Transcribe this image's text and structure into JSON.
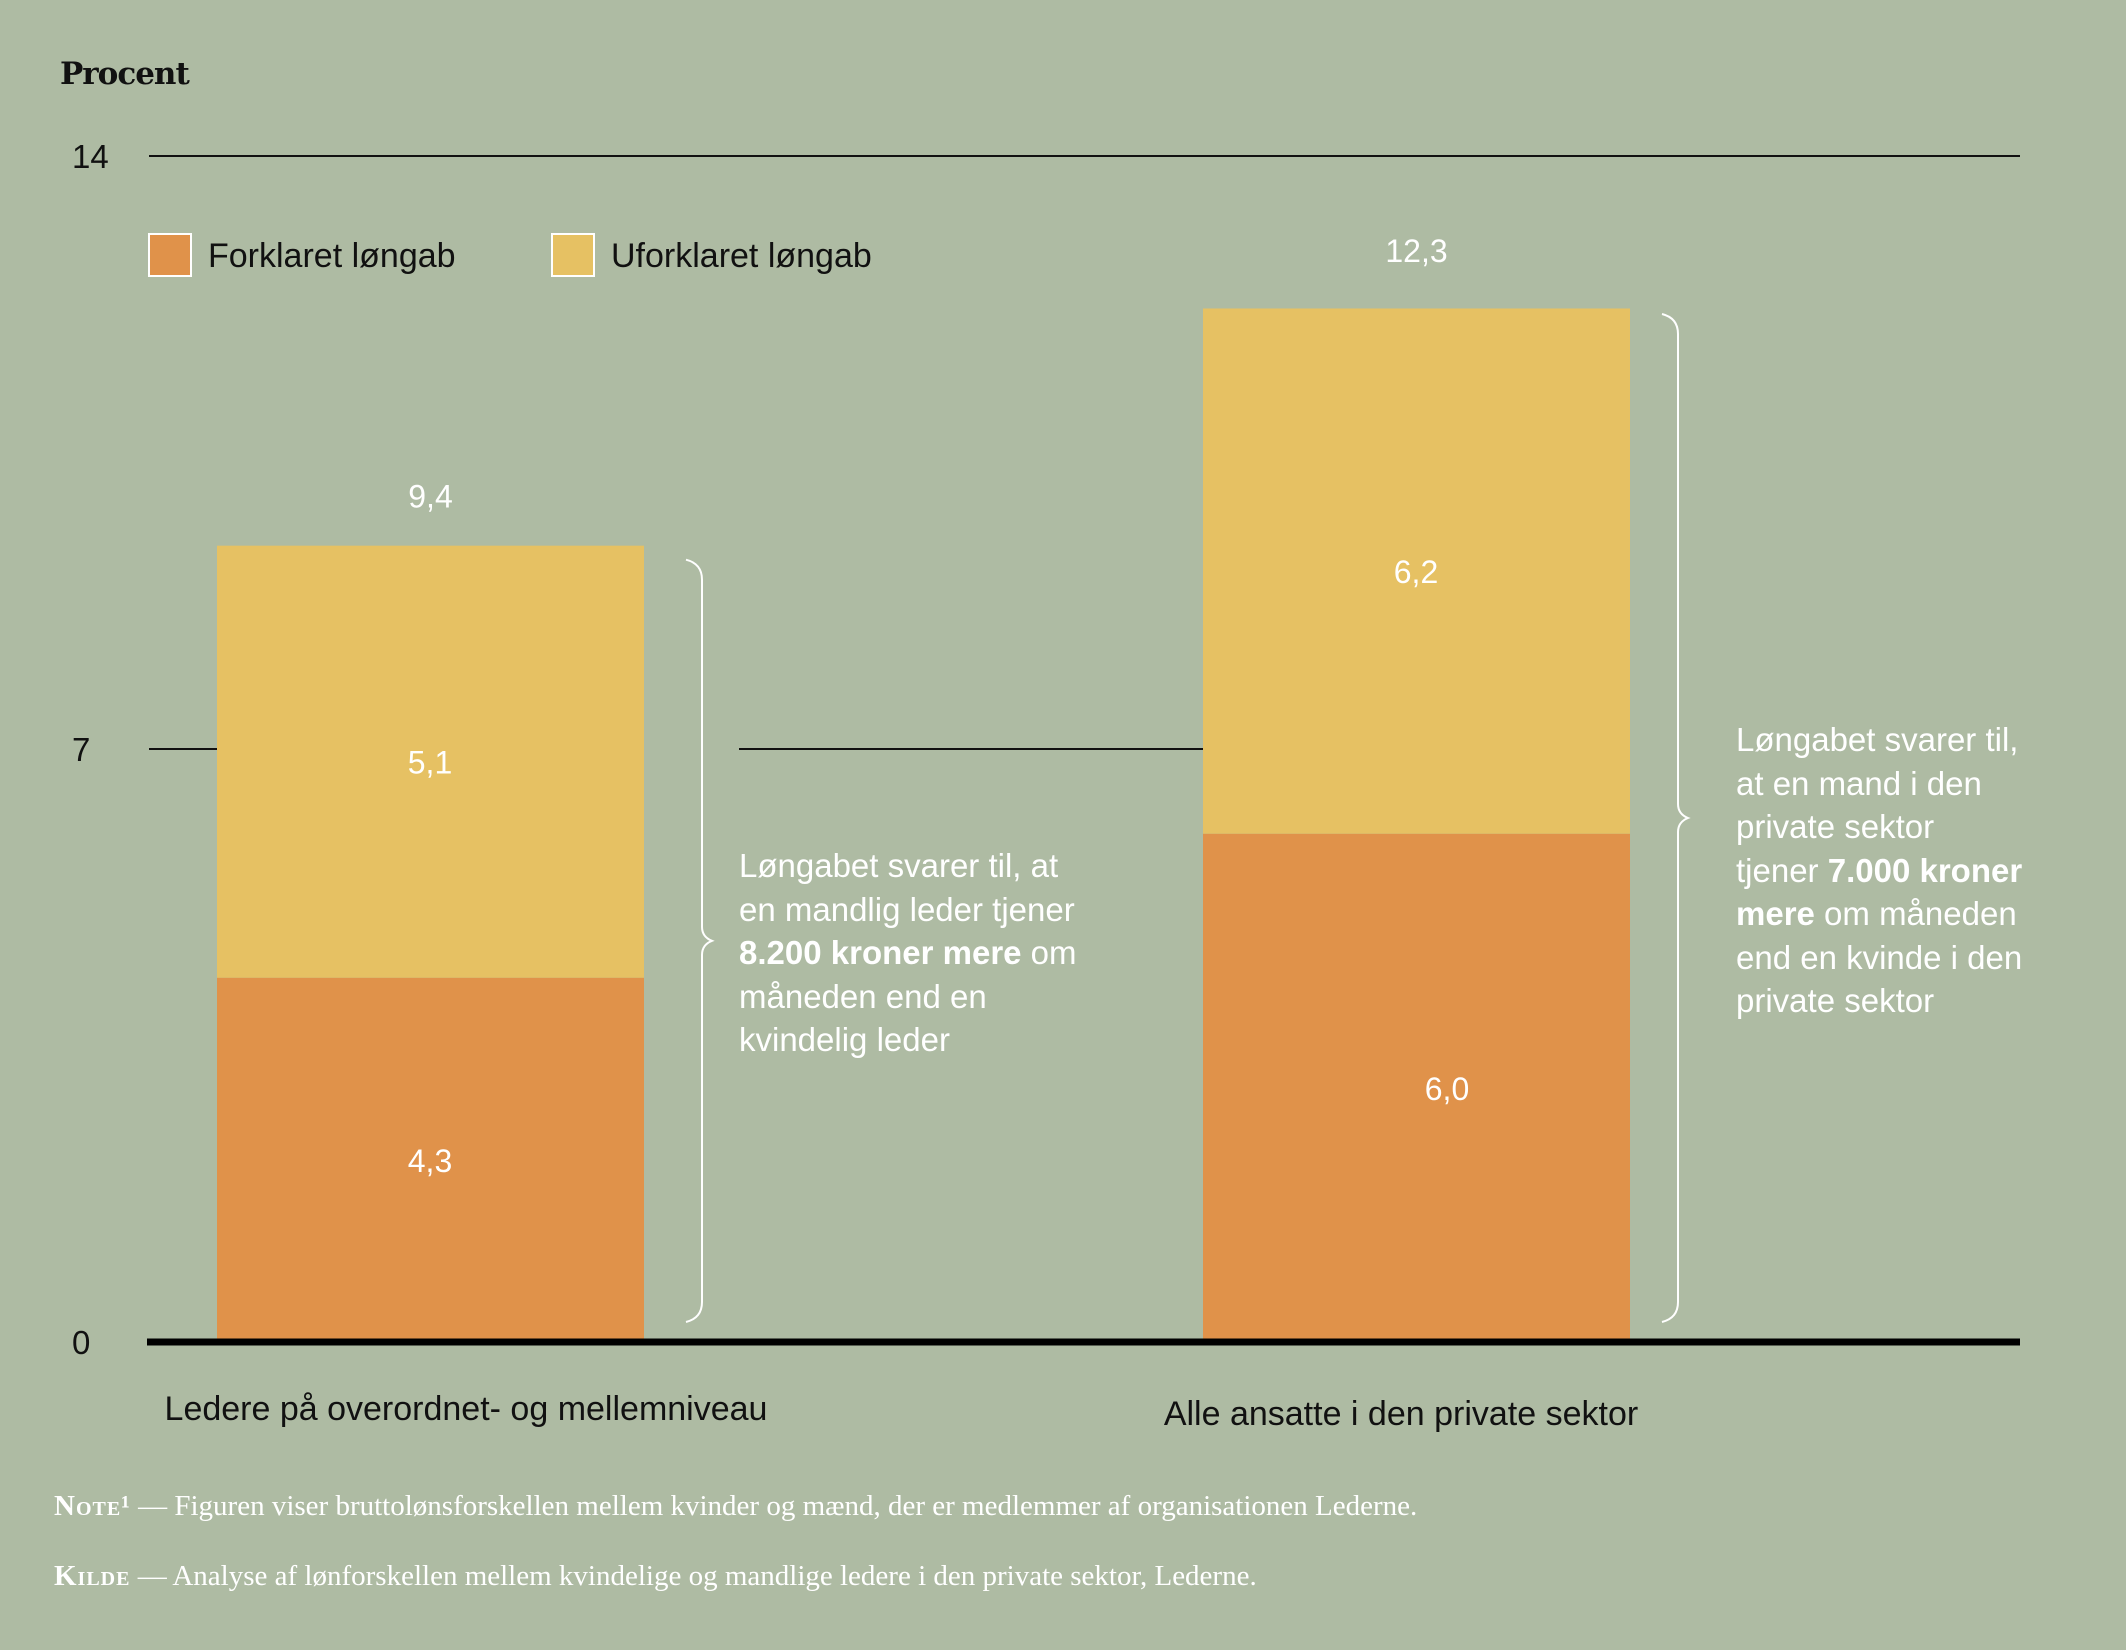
{
  "colors": {
    "background": "#aebba3",
    "explained": "#e0924a",
    "unexplained": "#e6c163",
    "axis": "#111111",
    "annotation": "#ffffff"
  },
  "chart_data": {
    "type": "bar",
    "stacked": true,
    "ylabel": "Procent",
    "ylim": [
      0,
      14
    ],
    "yticks": [
      "0",
      "7",
      "14"
    ],
    "categories": [
      "Ledere på overordnet- og mellemniveau",
      "Alle ansatte i den private sektor"
    ],
    "series": [
      {
        "name": "Forklaret løngab",
        "values": [
          4.3,
          6.0
        ],
        "labels": [
          "4,3",
          "6,0"
        ]
      },
      {
        "name": "Uforklaret løngab",
        "values": [
          5.1,
          6.2
        ],
        "labels": [
          "5,1",
          "6,2"
        ]
      }
    ],
    "totals": [
      9.4,
      12.3
    ],
    "total_labels": [
      "9,4",
      "12,3"
    ],
    "legend": "top-left",
    "annotations": [
      {
        "lines": [
          [
            {
              "t": "Løngabet svarer til, at"
            }
          ],
          [
            {
              "t": "en mandlig leder tjener"
            }
          ],
          [
            {
              "t": "8.200 kroner mere",
              "b": true
            },
            {
              "t": " om"
            }
          ],
          [
            {
              "t": "måneden end en"
            }
          ],
          [
            {
              "t": "kvindelig leder"
            }
          ]
        ]
      },
      {
        "lines": [
          [
            {
              "t": "Løngabet svarer til,"
            }
          ],
          [
            {
              "t": "at en mand i den"
            }
          ],
          [
            {
              "t": "private sektor"
            }
          ],
          [
            {
              "t": "tjener "
            },
            {
              "t": "7.000 kroner",
              "b": true
            }
          ],
          [
            {
              "t": "mere",
              "b": true
            },
            {
              "t": " om måneden"
            }
          ],
          [
            {
              "t": "end en kvinde i den"
            }
          ],
          [
            {
              "t": "private sektor"
            }
          ]
        ]
      }
    ]
  },
  "notes": [
    {
      "key": "Note¹",
      "text": " — Figuren viser bruttolønsforskellen mellem kvinder og mænd, der er medlemmer af organisationen Lederne."
    },
    {
      "key": "Kilde",
      "text": " — Analyse af lønforskellen mellem kvindelige og mandlige ledere i den private sektor, Lederne."
    }
  ]
}
